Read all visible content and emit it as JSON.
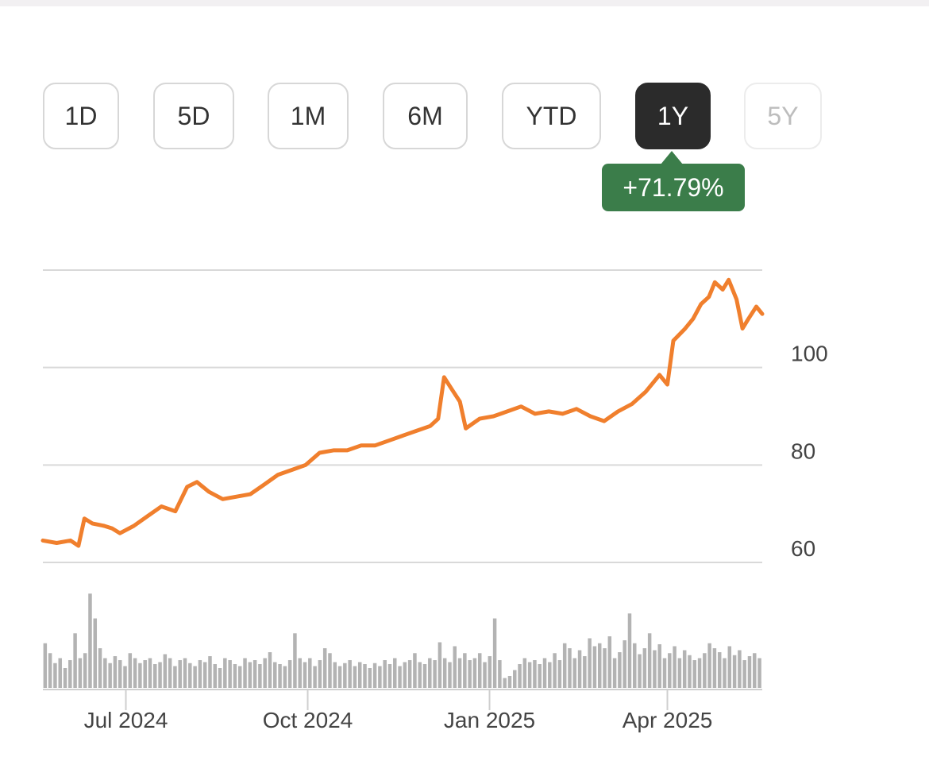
{
  "range_tabs": [
    {
      "label": "1D",
      "state": "normal"
    },
    {
      "label": "5D",
      "state": "normal"
    },
    {
      "label": "1M",
      "state": "normal"
    },
    {
      "label": "6M",
      "state": "normal"
    },
    {
      "label": "YTD",
      "state": "normal"
    },
    {
      "label": "1Y",
      "state": "selected"
    },
    {
      "label": "5Y",
      "state": "disabled"
    }
  ],
  "change_badge": "+71.79%",
  "colors": {
    "line": "#f07f2d",
    "badge": "#3b7d4a",
    "volume": "#b3b3b3",
    "grid": "#d9d9d9"
  },
  "chart_data": {
    "type": "line",
    "title": "",
    "xlabel": "",
    "ylabel": "",
    "ylim": [
      60,
      120
    ],
    "yticks": [
      60,
      80,
      100,
      120
    ],
    "ytick_labels": [
      "60",
      "80",
      "100",
      ""
    ],
    "xticks": [
      {
        "label": "Jul 2024",
        "x": "2024-07-01"
      },
      {
        "label": "Oct 2024",
        "x": "2024-10-01"
      },
      {
        "label": "Jan 2025",
        "x": "2025-01-01"
      },
      {
        "label": "Apr 2025",
        "x": "2025-04-01"
      }
    ],
    "x_range": [
      "2024-05-20",
      "2025-05-19"
    ],
    "grid": true,
    "series": [
      {
        "points": [
          [
            "2024-05-20",
            64.5
          ],
          [
            "2024-05-27",
            64.0
          ],
          [
            "2024-06-03",
            64.5
          ],
          [
            "2024-06-07",
            63.4
          ],
          [
            "2024-06-10",
            69.0
          ],
          [
            "2024-06-14",
            68.0
          ],
          [
            "2024-06-20",
            67.5
          ],
          [
            "2024-06-24",
            67.0
          ],
          [
            "2024-06-28",
            66.0
          ],
          [
            "2024-07-05",
            67.5
          ],
          [
            "2024-07-12",
            69.5
          ],
          [
            "2024-07-19",
            71.5
          ],
          [
            "2024-07-26",
            70.5
          ],
          [
            "2024-08-01",
            75.5
          ],
          [
            "2024-08-06",
            76.5
          ],
          [
            "2024-08-12",
            74.5
          ],
          [
            "2024-08-19",
            73.0
          ],
          [
            "2024-08-26",
            73.5
          ],
          [
            "2024-09-02",
            74.0
          ],
          [
            "2024-09-09",
            76.0
          ],
          [
            "2024-09-16",
            78.0
          ],
          [
            "2024-09-23",
            79.0
          ],
          [
            "2024-09-30",
            80.0
          ],
          [
            "2024-10-07",
            82.5
          ],
          [
            "2024-10-14",
            83.0
          ],
          [
            "2024-10-21",
            83.0
          ],
          [
            "2024-10-28",
            84.0
          ],
          [
            "2024-11-04",
            84.0
          ],
          [
            "2024-11-11",
            85.0
          ],
          [
            "2024-11-18",
            86.0
          ],
          [
            "2024-11-25",
            87.0
          ],
          [
            "2024-12-02",
            88.0
          ],
          [
            "2024-12-06",
            89.5
          ],
          [
            "2024-12-09",
            98.0
          ],
          [
            "2024-12-13",
            95.5
          ],
          [
            "2024-12-17",
            93.0
          ],
          [
            "2024-12-20",
            87.5
          ],
          [
            "2024-12-27",
            89.5
          ],
          [
            "2025-01-03",
            90.0
          ],
          [
            "2025-01-10",
            91.0
          ],
          [
            "2025-01-17",
            92.0
          ],
          [
            "2025-01-24",
            90.5
          ],
          [
            "2025-01-31",
            91.0
          ],
          [
            "2025-02-07",
            90.5
          ],
          [
            "2025-02-14",
            91.5
          ],
          [
            "2025-02-21",
            90.0
          ],
          [
            "2025-02-28",
            89.0
          ],
          [
            "2025-03-07",
            91.0
          ],
          [
            "2025-03-14",
            92.5
          ],
          [
            "2025-03-21",
            95.0
          ],
          [
            "2025-03-28",
            98.5
          ],
          [
            "2025-04-01",
            96.5
          ],
          [
            "2025-04-04",
            105.5
          ],
          [
            "2025-04-10",
            108.0
          ],
          [
            "2025-04-14",
            110.0
          ],
          [
            "2025-04-18",
            113.0
          ],
          [
            "2025-04-22",
            114.5
          ],
          [
            "2025-04-25",
            117.5
          ],
          [
            "2025-04-29",
            116.0
          ],
          [
            "2025-05-02",
            118.0
          ],
          [
            "2025-05-06",
            114.0
          ],
          [
            "2025-05-09",
            108.0
          ],
          [
            "2025-05-12",
            110.0
          ],
          [
            "2025-05-16",
            112.5
          ],
          [
            "2025-05-19",
            111.0
          ]
        ]
      }
    ],
    "volume": {
      "relative_values": [
        0.45,
        0.35,
        0.25,
        0.3,
        0.2,
        0.28,
        0.55,
        0.3,
        0.35,
        0.95,
        0.7,
        0.4,
        0.3,
        0.25,
        0.32,
        0.28,
        0.22,
        0.35,
        0.3,
        0.25,
        0.28,
        0.3,
        0.24,
        0.26,
        0.34,
        0.3,
        0.22,
        0.28,
        0.3,
        0.25,
        0.22,
        0.28,
        0.26,
        0.32,
        0.24,
        0.2,
        0.3,
        0.28,
        0.24,
        0.22,
        0.3,
        0.26,
        0.28,
        0.24,
        0.3,
        0.36,
        0.26,
        0.24,
        0.22,
        0.28,
        0.55,
        0.3,
        0.26,
        0.3,
        0.22,
        0.28,
        0.4,
        0.35,
        0.26,
        0.22,
        0.25,
        0.28,
        0.22,
        0.26,
        0.24,
        0.2,
        0.25,
        0.22,
        0.28,
        0.24,
        0.3,
        0.22,
        0.26,
        0.28,
        0.35,
        0.26,
        0.24,
        0.3,
        0.28,
        0.46,
        0.3,
        0.26,
        0.42,
        0.3,
        0.35,
        0.28,
        0.3,
        0.35,
        0.26,
        0.32,
        0.7,
        0.28,
        0.1,
        0.12,
        0.18,
        0.24,
        0.3,
        0.26,
        0.28,
        0.24,
        0.3,
        0.26,
        0.35,
        0.28,
        0.45,
        0.4,
        0.3,
        0.38,
        0.32,
        0.5,
        0.42,
        0.45,
        0.4,
        0.52,
        0.3,
        0.36,
        0.48,
        0.75,
        0.45,
        0.34,
        0.4,
        0.55,
        0.38,
        0.44,
        0.3,
        0.35,
        0.42,
        0.3,
        0.38,
        0.33,
        0.28,
        0.3,
        0.35,
        0.45,
        0.4,
        0.36,
        0.3,
        0.42,
        0.33,
        0.38,
        0.28,
        0.32,
        0.35,
        0.3
      ]
    }
  }
}
